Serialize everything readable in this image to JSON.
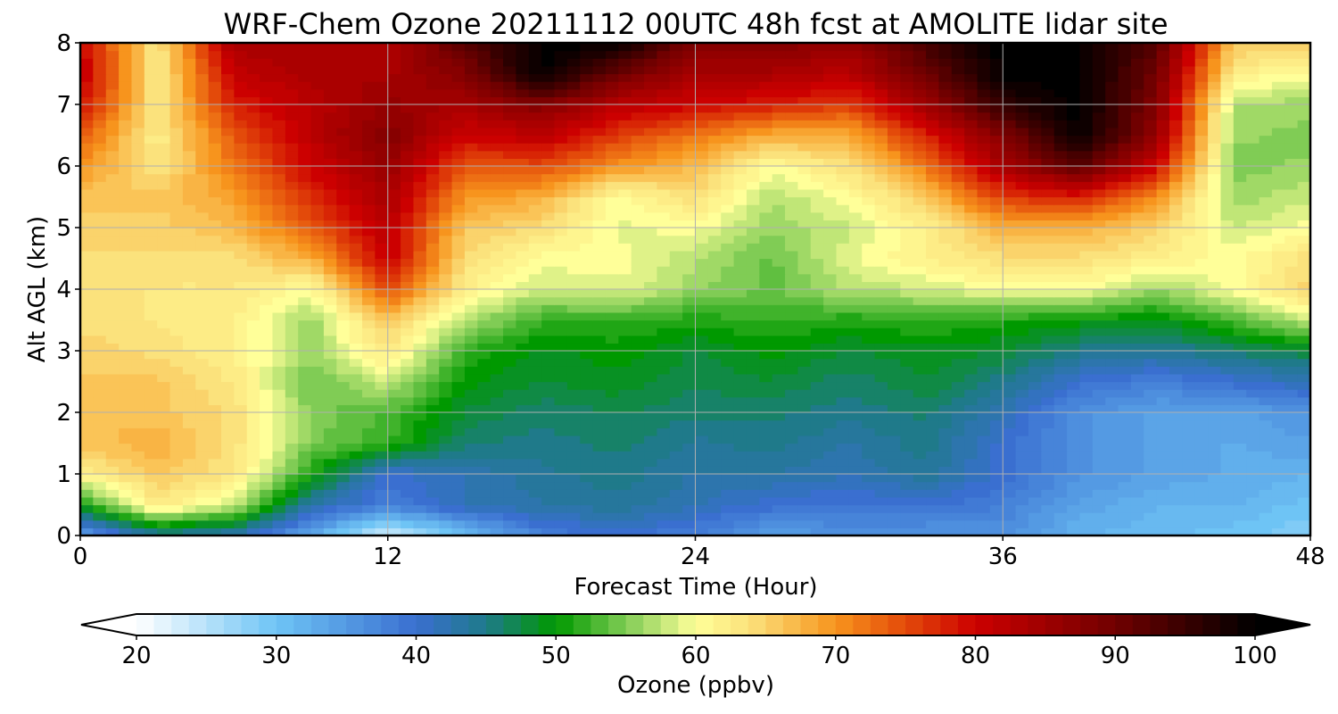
{
  "chart_data": {
    "type": "heatmap",
    "title": "WRF-Chem Ozone  20211112 00UTC 48h fcst at AMOLITE lidar site",
    "xlabel": "Forecast Time (Hour)",
    "ylabel": "Alt AGL (km)",
    "xlim": [
      0,
      48
    ],
    "ylim": [
      0,
      8
    ],
    "xticks": [
      0,
      12,
      24,
      36,
      48
    ],
    "yticks": [
      0,
      1,
      2,
      3,
      4,
      5,
      6,
      7,
      8
    ],
    "grid": true,
    "colorbar": {
      "label": "Ozone  (ppbv)",
      "min": 20,
      "max": 100,
      "ticks": [
        20,
        30,
        40,
        50,
        60,
        70,
        80,
        90,
        100
      ],
      "extend": "both",
      "color_stops": [
        {
          "value": 20,
          "color": "#ffffff"
        },
        {
          "value": 30,
          "color": "#6ec4f5"
        },
        {
          "value": 40,
          "color": "#3a6fd0"
        },
        {
          "value": 45,
          "color": "#1f7a8a"
        },
        {
          "value": 50,
          "color": "#009900"
        },
        {
          "value": 55,
          "color": "#80cc55"
        },
        {
          "value": 60,
          "color": "#ffff99"
        },
        {
          "value": 64,
          "color": "#fbe07a"
        },
        {
          "value": 70,
          "color": "#f7941d"
        },
        {
          "value": 75,
          "color": "#e34a0a"
        },
        {
          "value": 80,
          "color": "#cc0000"
        },
        {
          "value": 90,
          "color": "#700000"
        },
        {
          "value": 100,
          "color": "#000000"
        }
      ]
    },
    "z_levels_km": [
      0,
      0.5,
      1,
      1.5,
      2,
      2.5,
      3,
      3.5,
      4,
      4.5,
      5,
      5.5,
      6,
      6.5,
      7,
      7.5,
      8
    ],
    "x_hours": [
      0,
      3,
      6,
      9,
      12,
      15,
      18,
      21,
      24,
      27,
      30,
      33,
      36,
      39,
      42,
      45,
      48
    ],
    "ozone_ppbv_by_height": [
      [
        34,
        44,
        42,
        33,
        22,
        30,
        38,
        40,
        38,
        34,
        36,
        35,
        36,
        32,
        31,
        30,
        28
      ],
      [
        50,
        63,
        58,
        43,
        38,
        42,
        43,
        44,
        42,
        40,
        39,
        40,
        38,
        34,
        32,
        32,
        30
      ],
      [
        62,
        66,
        63,
        51,
        40,
        42,
        44,
        45,
        43,
        43,
        42,
        44,
        40,
        36,
        34,
        33,
        32
      ],
      [
        66,
        68,
        64,
        55,
        52,
        46,
        45,
        46,
        44,
        45,
        43,
        45,
        40,
        36,
        34,
        33,
        34
      ],
      [
        67,
        66,
        64,
        55,
        53,
        48,
        46,
        47,
        46,
        46,
        45,
        46,
        42,
        36,
        34,
        34,
        36
      ],
      [
        66,
        66,
        63,
        54,
        58,
        50,
        48,
        49,
        47,
        48,
        46,
        48,
        45,
        40,
        38,
        40,
        42
      ],
      [
        65,
        64,
        62,
        56,
        63,
        52,
        49,
        50,
        48,
        50,
        48,
        49,
        48,
        45,
        44,
        46,
        48
      ],
      [
        64,
        63,
        62,
        56,
        66,
        57,
        52,
        52,
        51,
        52,
        51,
        52,
        51,
        50,
        49,
        53,
        58
      ],
      [
        64,
        63,
        63,
        60,
        75,
        62,
        58,
        59,
        56,
        54,
        57,
        58,
        60,
        60,
        56,
        60,
        65
      ],
      [
        64,
        64,
        64,
        68,
        81,
        64,
        60,
        60,
        57,
        54,
        59,
        62,
        64,
        64,
        62,
        60,
        64
      ],
      [
        65,
        65,
        67,
        74,
        82,
        66,
        64,
        59,
        60,
        56,
        58,
        62,
        68,
        68,
        65,
        58,
        60
      ],
      [
        66,
        66,
        69,
        77,
        84,
        70,
        68,
        60,
        64,
        57,
        60,
        66,
        76,
        78,
        70,
        56,
        58
      ],
      [
        70,
        63,
        72,
        80,
        86,
        74,
        75,
        70,
        67,
        60,
        64,
        72,
        84,
        92,
        80,
        55,
        56
      ],
      [
        74,
        62,
        74,
        82,
        88,
        80,
        82,
        76,
        72,
        68,
        68,
        78,
        88,
        100,
        86,
        56,
        55
      ],
      [
        79,
        63,
        78,
        82,
        86,
        84,
        88,
        82,
        80,
        78,
        76,
        85,
        96,
        100,
        88,
        57,
        56
      ],
      [
        82,
        62,
        81,
        84,
        84,
        88,
        100,
        90,
        84,
        84,
        82,
        90,
        100,
        100,
        90,
        62,
        60
      ],
      [
        80,
        63,
        84,
        84,
        83,
        92,
        100,
        100,
        88,
        88,
        86,
        94,
        100,
        100,
        92,
        66,
        66
      ]
    ]
  }
}
